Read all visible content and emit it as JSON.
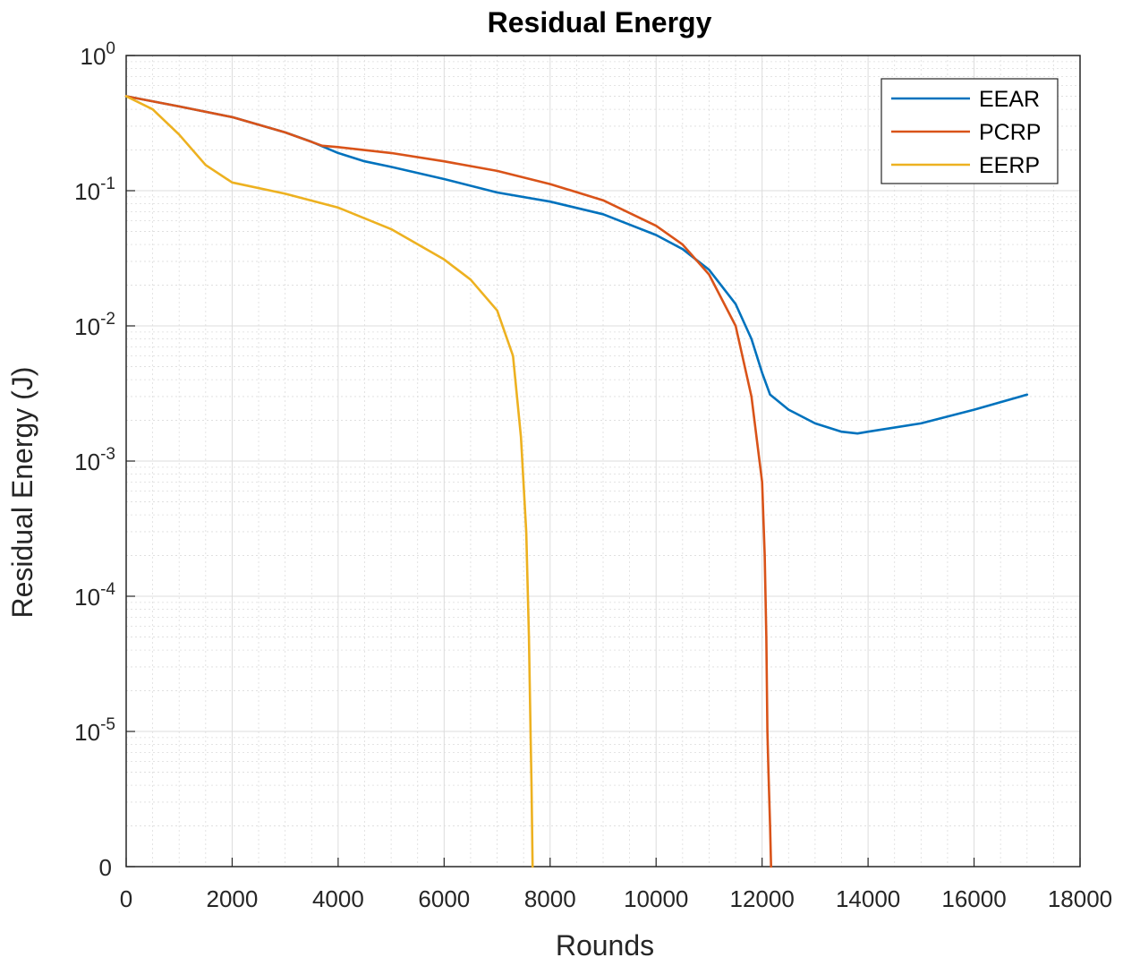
{
  "chart_data": {
    "type": "line",
    "title": "Residual Energy",
    "xlabel": "Rounds",
    "ylabel": "Residual Energy  (J)",
    "xlim": [
      0,
      18000
    ],
    "x_ticks": [
      0,
      2000,
      4000,
      6000,
      8000,
      10000,
      12000,
      14000,
      16000,
      18000
    ],
    "x_tick_labels": [
      "0",
      "2000",
      "4000",
      "6000",
      "8000",
      "10000",
      "12000",
      "14000",
      "16000",
      "18000"
    ],
    "y_scale": "log",
    "y_ticks": [
      {
        "base": "10",
        "exp": "0"
      },
      {
        "base": "10",
        "exp": "-1"
      },
      {
        "base": "10",
        "exp": "-2"
      },
      {
        "base": "10",
        "exp": "-3"
      },
      {
        "base": "10",
        "exp": "-4"
      },
      {
        "base": "10",
        "exp": "-5"
      },
      {
        "base": "0",
        "exp": ""
      }
    ],
    "y_tick_values": [
      1,
      0.1,
      0.01,
      0.001,
      0.0001,
      1e-05,
      1e-06
    ],
    "grid": true,
    "legend_position": "top-right",
    "colors": {
      "EEAR": "#0072BD",
      "PCRP": "#D95319",
      "EERP": "#EDB120",
      "axis": "#262626",
      "grid": "#dcdcdc"
    },
    "series": [
      {
        "name": "EEAR",
        "x": [
          0,
          1000,
          2000,
          3000,
          3500,
          4000,
          4500,
          5000,
          6000,
          7000,
          8000,
          9000,
          10000,
          10500,
          11000,
          11500,
          11800,
          12000,
          12150,
          12500,
          13000,
          13500,
          13800,
          14000,
          15000,
          16000,
          17000
        ],
        "y": [
          0.5,
          0.42,
          0.35,
          0.27,
          0.23,
          0.19,
          0.165,
          0.15,
          0.122,
          0.097,
          0.083,
          0.067,
          0.047,
          0.037,
          0.026,
          0.0145,
          0.008,
          0.0045,
          0.0031,
          0.0024,
          0.0019,
          0.00165,
          0.0016,
          0.00165,
          0.0019,
          0.0024,
          0.0031
        ]
      },
      {
        "name": "PCRP",
        "x": [
          0,
          1000,
          2000,
          3000,
          3700,
          4000,
          5000,
          6000,
          7000,
          8000,
          9000,
          10000,
          10500,
          11000,
          11500,
          11800,
          12000,
          12050,
          12080,
          12100,
          12120,
          12150,
          12170
        ],
        "y": [
          0.5,
          0.42,
          0.35,
          0.27,
          0.215,
          0.21,
          0.19,
          0.165,
          0.14,
          0.112,
          0.085,
          0.055,
          0.04,
          0.024,
          0.01,
          0.003,
          0.0007,
          0.0002,
          5e-05,
          1e-05,
          5e-06,
          2e-06,
          1e-06
        ]
      },
      {
        "name": "EERP",
        "x": [
          0,
          500,
          1000,
          1500,
          2000,
          3000,
          4000,
          5000,
          6000,
          6500,
          7000,
          7300,
          7450,
          7550,
          7600,
          7630,
          7650,
          7660,
          7670
        ],
        "y": [
          0.5,
          0.4,
          0.26,
          0.155,
          0.115,
          0.095,
          0.075,
          0.052,
          0.031,
          0.022,
          0.013,
          0.006,
          0.0015,
          0.0003,
          5e-05,
          1e-05,
          4e-06,
          2e-06,
          1e-06
        ]
      }
    ]
  }
}
